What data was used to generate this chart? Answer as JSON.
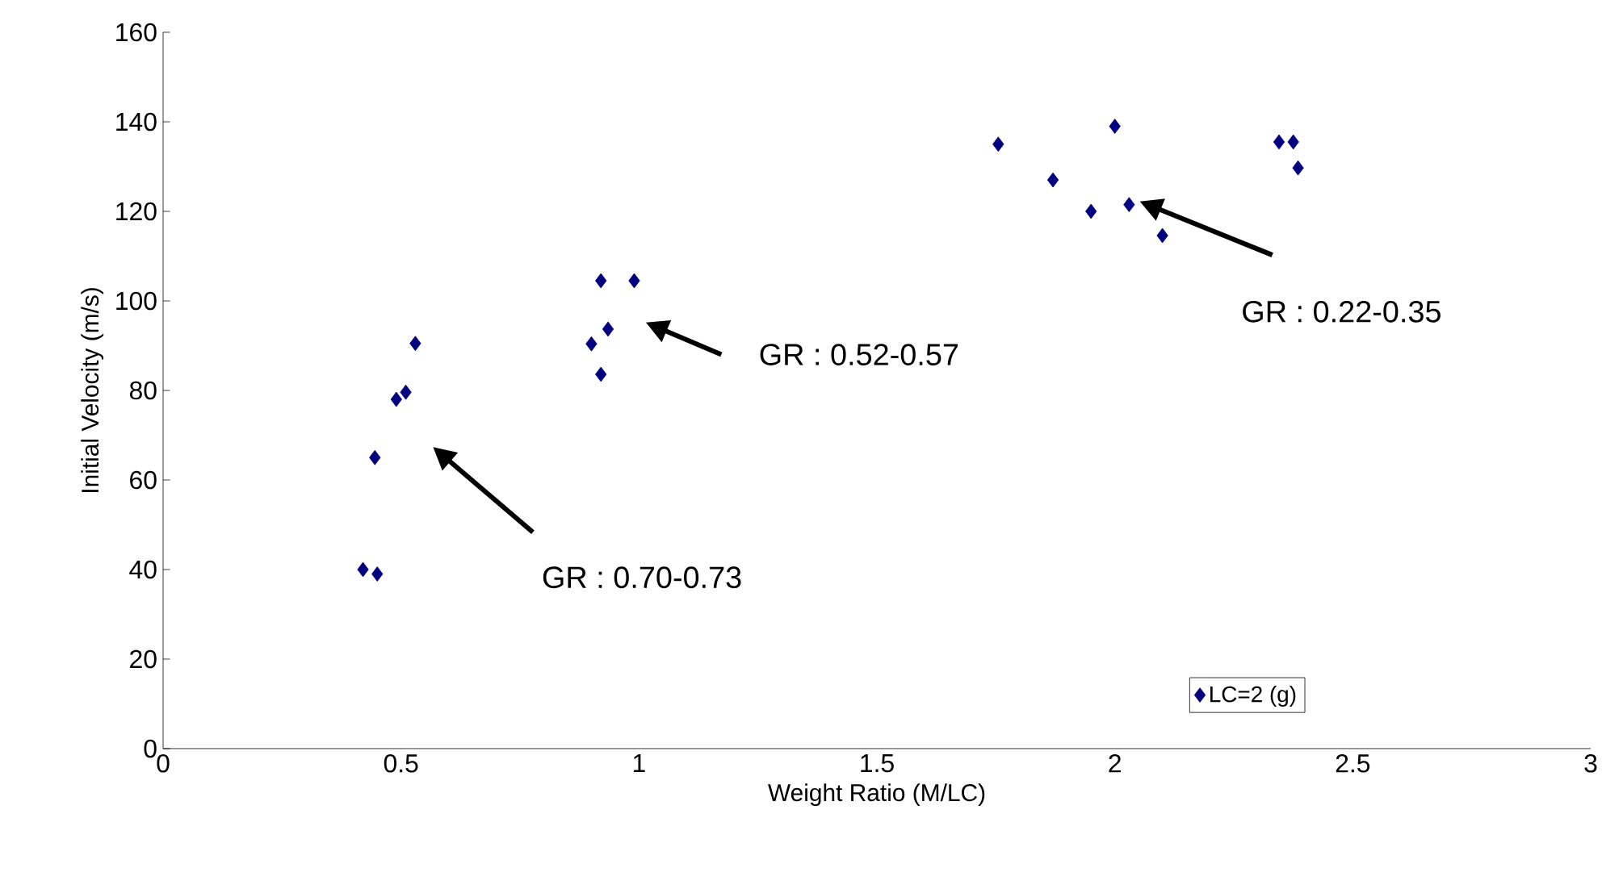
{
  "chart_data": {
    "type": "scatter",
    "xlabel": "Weight Ratio (M/LC)",
    "ylabel": "Initial Velocity (m/s)",
    "xlim": [
      0,
      3
    ],
    "ylim": [
      0,
      160
    ],
    "xticks": [
      0,
      0.5,
      1,
      1.5,
      2,
      2.5,
      3
    ],
    "yticks": [
      0,
      20,
      40,
      60,
      80,
      100,
      120,
      140,
      160
    ],
    "grid": false,
    "legend": "bottom right",
    "marker": "diamond",
    "series": [
      {
        "name": "LC=2 (g)",
        "color": "#000080",
        "x": [
          0.42,
          0.45,
          0.445,
          0.49,
          0.51,
          0.53,
          0.92,
          0.99,
          0.935,
          0.9,
          0.92,
          1.755,
          2.0,
          1.87,
          1.95,
          2.03,
          2.1,
          2.345,
          2.375,
          2.385
        ],
        "values": [
          40,
          39,
          65,
          78,
          79.6,
          90.5,
          104.5,
          104.5,
          93.7,
          90.4,
          83.6,
          135,
          139,
          127,
          120,
          121.5,
          114.6,
          135.5,
          135.5,
          129.7
        ]
      }
    ],
    "annotations": [
      "GR : 0.70-0.73",
      "GR : 0.52-0.57",
      "GR : 0.22-0.35"
    ]
  }
}
